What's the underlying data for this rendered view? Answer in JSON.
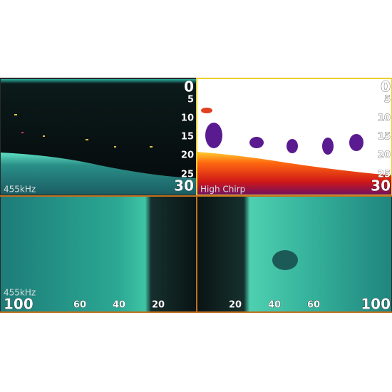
{
  "panels": [
    {
      "scale": [
        "0",
        "5",
        "10",
        "15",
        "20",
        "25",
        "30"
      ],
      "label": "455kHz"
    },
    {
      "scale": [
        "0",
        "5",
        "10",
        "15",
        "20",
        "25",
        "30"
      ],
      "label": "High Chirp"
    },
    {
      "scale": [
        "100",
        "60",
        "40",
        "20"
      ],
      "label": "455kHz"
    },
    {
      "scale": [
        "20",
        "40",
        "60",
        "100"
      ]
    }
  ]
}
